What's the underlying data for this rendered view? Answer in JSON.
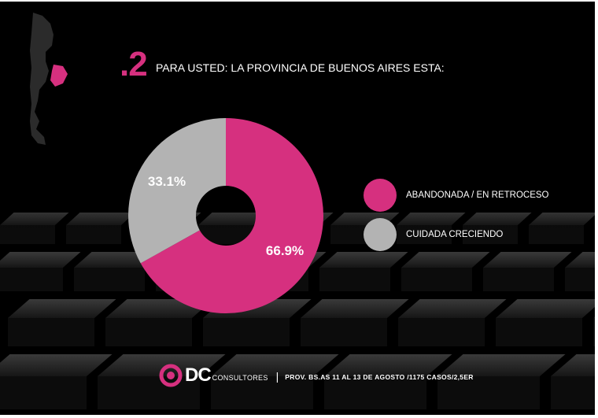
{
  "question": {
    "number": ".2",
    "text": "PARA USTED: LA PROVINCIA DE BUENOS AIRES ESTA:"
  },
  "chart_data": {
    "type": "pie",
    "title": "",
    "donut": true,
    "series": [
      {
        "name": "ABANDONADA / EN RETROCESO",
        "value": 66.9,
        "label": "66.9%",
        "color": "#d6307f"
      },
      {
        "name": "CUIDADA CRECIENDO",
        "value": 33.1,
        "label": "33.1%",
        "color": "#b3b3b3"
      }
    ],
    "legend_position": "right"
  },
  "legend": [
    {
      "label": "ABANDONADA / EN RETROCESO",
      "color": "#d6307f"
    },
    {
      "label": "CUIDADA CRECIENDO",
      "color": "#b3b3b3"
    }
  ],
  "footer": {
    "brand": "DC",
    "brand_sub": "CONSULTORES",
    "separator": "|",
    "note": "PROV. BS.AS 11 AL 13 DE AGOSTO /1175 CASOS/2,5ER"
  },
  "map": {
    "icon": "argentina-map-icon",
    "highlight_color": "#d6307f",
    "base_color": "#2b2b2b"
  },
  "colors": {
    "accent": "#d6307f",
    "secondary": "#b3b3b3",
    "background": "#000000"
  }
}
